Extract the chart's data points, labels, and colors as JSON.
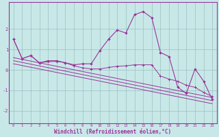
{
  "xlabel": "Windchill (Refroidissement éolien,°C)",
  "ylabel": "",
  "xlim": [
    -0.5,
    23.5
  ],
  "ylim": [
    -2.6,
    3.3
  ],
  "yticks": [
    -2,
    -1,
    0,
    1,
    2
  ],
  "xticks": [
    0,
    1,
    2,
    3,
    4,
    5,
    6,
    7,
    8,
    9,
    10,
    11,
    12,
    13,
    14,
    15,
    16,
    17,
    18,
    19,
    20,
    21,
    22,
    23
  ],
  "bg_color": "#c8e8e8",
  "line_color": "#993399",
  "grid_color": "#9bbfbf",
  "line_main": [
    1.5,
    0.55,
    0.7,
    0.35,
    0.45,
    0.45,
    0.35,
    0.25,
    0.3,
    0.3,
    0.95,
    1.5,
    1.95,
    1.8,
    2.7,
    2.85,
    2.55,
    0.85,
    0.65,
    -0.85,
    -1.15,
    0.05,
    -0.55,
    -1.45
  ],
  "line_avg": [
    1.5,
    0.55,
    0.7,
    0.35,
    0.4,
    0.42,
    0.35,
    0.2,
    0.1,
    0.05,
    0.05,
    0.12,
    0.18,
    0.2,
    0.25,
    0.25,
    0.25,
    -0.3,
    -0.45,
    -0.55,
    -0.75,
    -0.85,
    -1.1,
    -1.3
  ],
  "trend1_y": [
    0.6,
    -1.35
  ],
  "trend2_y": [
    0.45,
    -1.5
  ],
  "trend3_y": [
    0.3,
    -1.65
  ]
}
